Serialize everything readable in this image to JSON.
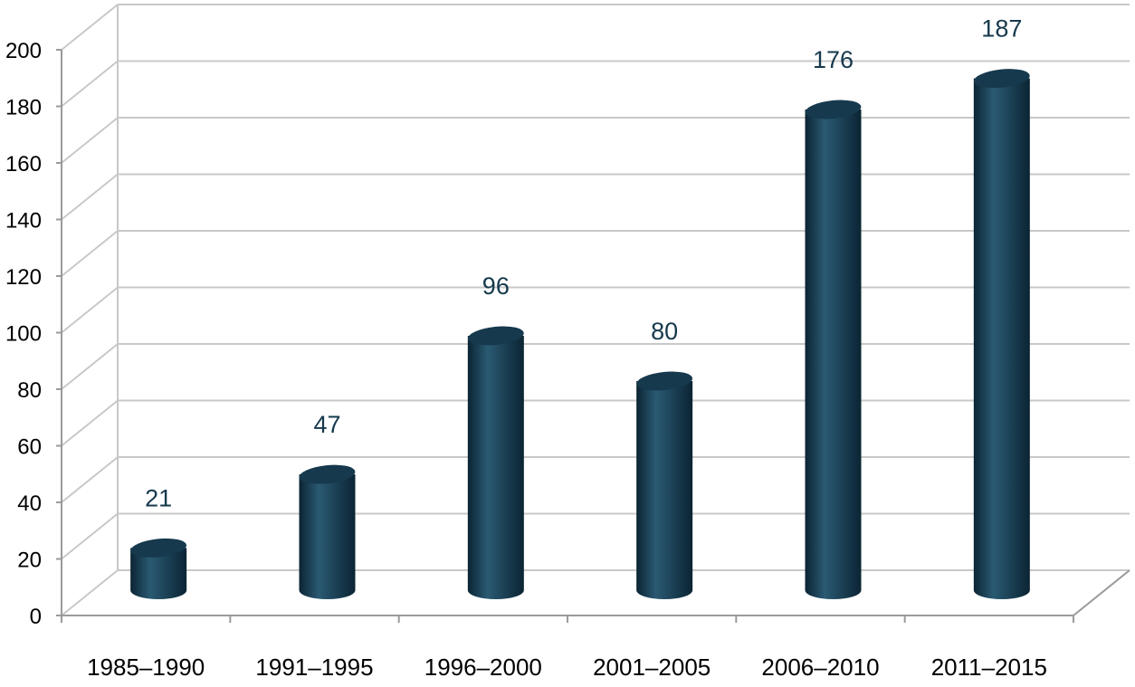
{
  "chart_data": {
    "type": "bar",
    "categories": [
      "1985–1990",
      "1991–1995",
      "1996–2000",
      "2001–2005",
      "2006–2010",
      "2011–2015"
    ],
    "values": [
      21,
      47,
      96,
      80,
      176,
      187
    ],
    "title": "",
    "xlabel": "",
    "ylabel": "",
    "ylim": [
      0,
      200
    ],
    "yticks": [
      0,
      20,
      40,
      60,
      80,
      100,
      120,
      140,
      160,
      180,
      200
    ],
    "grid": true,
    "legend": "none",
    "bar_shape": "cylinder",
    "colors": {
      "bar": "#16394d",
      "bar_dark": "#0b2433",
      "bar_light": "#2a5a73",
      "grid": "#c8c8c8",
      "axis": "#9a9a9a",
      "text": "#000000",
      "data_label": "#16394d"
    }
  }
}
